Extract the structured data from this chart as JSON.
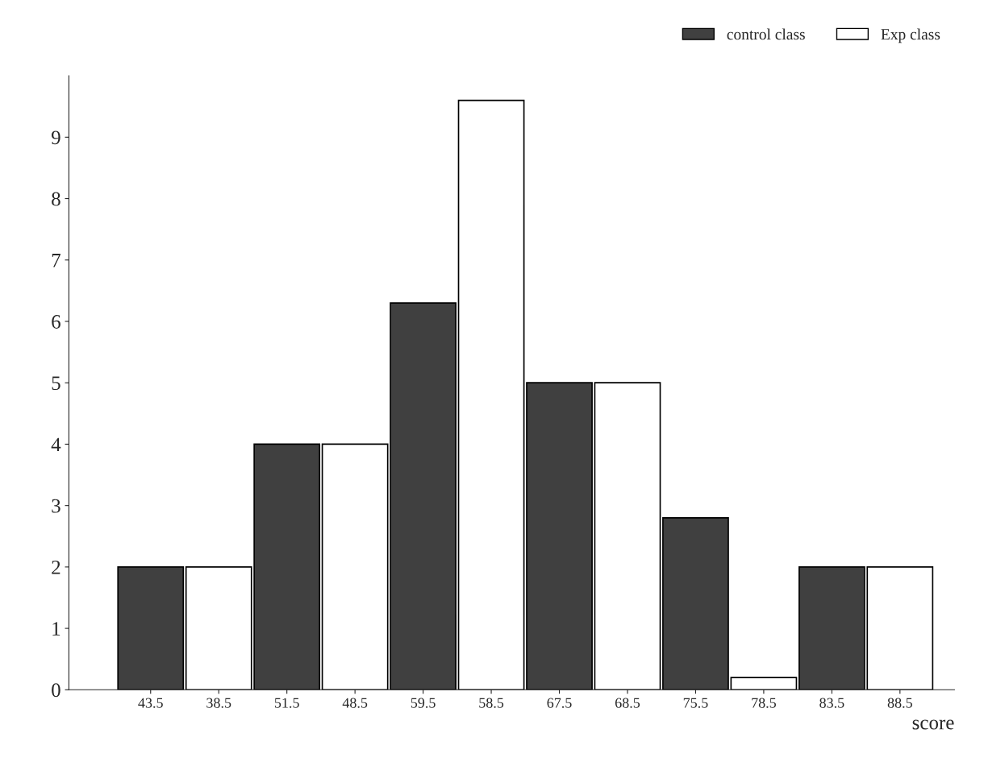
{
  "chart_data": {
    "type": "bar",
    "categories": [
      "43.5",
      "38.5",
      "51.5",
      "48.5",
      "59.5",
      "58.5",
      "67.5",
      "68.5",
      "75.5",
      "78.5",
      "83.5",
      "88.5"
    ],
    "series": [
      {
        "name": "control class",
        "color": "#404040",
        "values": [
          2,
          null,
          4,
          null,
          6.3,
          null,
          5,
          null,
          2.8,
          null,
          2,
          null
        ]
      },
      {
        "name": "Exp class",
        "color": "#ffffff",
        "values": [
          null,
          2,
          null,
          4,
          null,
          9.6,
          null,
          5,
          null,
          0.2,
          null,
          2
        ]
      }
    ],
    "xlabel": "score",
    "ylim": [
      0,
      10
    ],
    "yticks": [
      0,
      1,
      2,
      3,
      4,
      5,
      6,
      7,
      8,
      9
    ],
    "grid": false,
    "legend": "top right"
  }
}
